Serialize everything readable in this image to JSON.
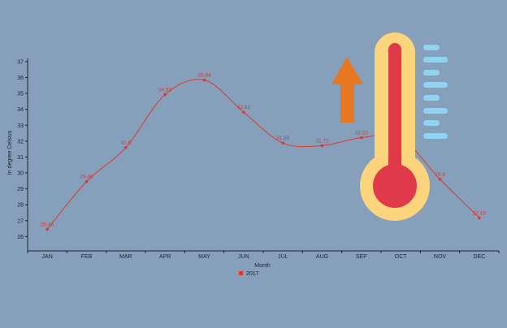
{
  "chart_data": {
    "type": "line",
    "categories": [
      "JAN",
      "FEB",
      "MAR",
      "APR",
      "MAY",
      "JUN",
      "JUL",
      "AUG",
      "SEP",
      "OCT",
      "NOV",
      "DEC"
    ],
    "series": [
      {
        "name": "2017",
        "values": [
          26.46,
          29.46,
          31.6,
          34.93,
          35.84,
          33.82,
          31.88,
          31.72,
          32.22,
          32.2,
          29.6,
          27.18
        ],
        "labels": [
          "26.46",
          "29.46",
          "31.6",
          "34.93",
          "35.84",
          "33.82",
          "31.88",
          "31.72",
          "32.22",
          "",
          "29.6",
          "27.18"
        ]
      }
    ],
    "xlabel": "Month",
    "ylabel": "In degree Celsius",
    "yticks": [
      26,
      27,
      28,
      29,
      30,
      31,
      32,
      33,
      34,
      35,
      36,
      37
    ],
    "ylim": [
      25.1,
      37.2
    ],
    "grid": false,
    "legend": "bottom-center",
    "series_color": "#e0392c"
  },
  "illustration": {
    "icons": [
      "thermometer-icon",
      "up-arrow-icon"
    ],
    "colors": {
      "arrow": "#e87722",
      "thermometer_frame": "#fcd47c",
      "mercury": "#e0394a",
      "scale_marks": "#8fd3f0"
    }
  }
}
